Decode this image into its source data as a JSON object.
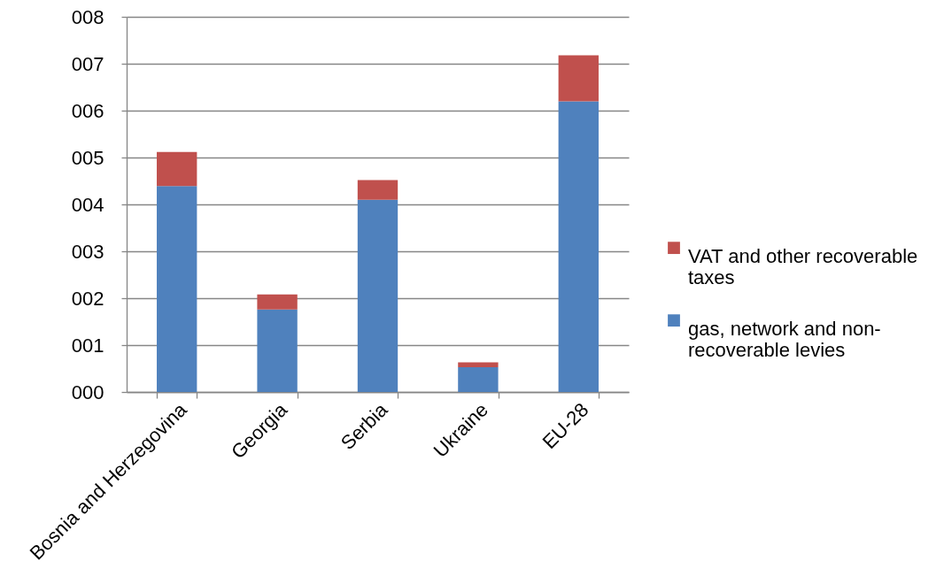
{
  "chart_data": {
    "type": "bar",
    "stacked": true,
    "categories": [
      "Bosnia and Herzegovina",
      "Georgia",
      "Serbia",
      "Ukraine",
      "EU-28"
    ],
    "series": [
      {
        "name": "gas, network and non-recoverable levies",
        "color": "#4f81bd",
        "values": [
          4.39,
          1.76,
          4.1,
          0.53,
          6.2
        ]
      },
      {
        "name": "VAT and other recoverable taxes",
        "color": "#c0504d",
        "values": [
          0.73,
          0.32,
          0.42,
          0.1,
          0.98
        ]
      }
    ],
    "ylim": [
      0,
      8
    ],
    "yticks": [
      {
        "value": 0,
        "label": "000"
      },
      {
        "value": 1,
        "label": "001"
      },
      {
        "value": 2,
        "label": "002"
      },
      {
        "value": 3,
        "label": "003"
      },
      {
        "value": 4,
        "label": "004"
      },
      {
        "value": 5,
        "label": "005"
      },
      {
        "value": 6,
        "label": "006"
      },
      {
        "value": 7,
        "label": "007"
      },
      {
        "value": 8,
        "label": "008"
      }
    ],
    "grid": "y",
    "legend": "right"
  }
}
